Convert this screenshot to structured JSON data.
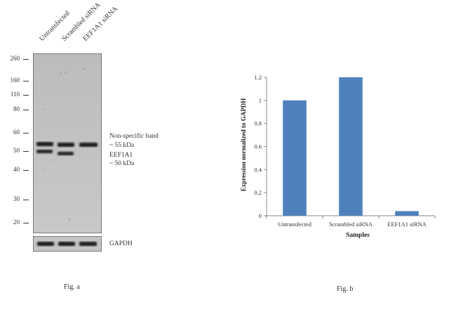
{
  "fig_a": {
    "lanes": [
      "Untransfected",
      "Scrambled siRNA",
      "EEF1A1 siRNA"
    ],
    "markers": [
      "260",
      "160",
      "110",
      "80",
      "60",
      "50",
      "40",
      "30",
      "20"
    ],
    "band_annotation_1": "Non-specific band",
    "band_annotation_1_size": "~ 55 kDa",
    "band_annotation_2": "EEF1A1",
    "band_annotation_2_size": "~ 50 kDa",
    "loading_control": "GAPDH",
    "caption": "Fig. a"
  },
  "fig_b": {
    "caption": "Fig. b"
  },
  "chart_data": {
    "type": "bar",
    "categories": [
      "Untransfected",
      "Scrambled siRNA",
      "EEF1A1 siRNA"
    ],
    "values": [
      1.0,
      1.2,
      0.04
    ],
    "xlabel": "Samples",
    "ylabel": "Expression normalized to GAPDH",
    "ylim": [
      0,
      1.2
    ],
    "yticks": [
      "0",
      "0.2",
      "0.4",
      "0.6",
      "0.8",
      "1",
      "1.2"
    ],
    "bar_color": "#4f81bd",
    "grid": false
  }
}
